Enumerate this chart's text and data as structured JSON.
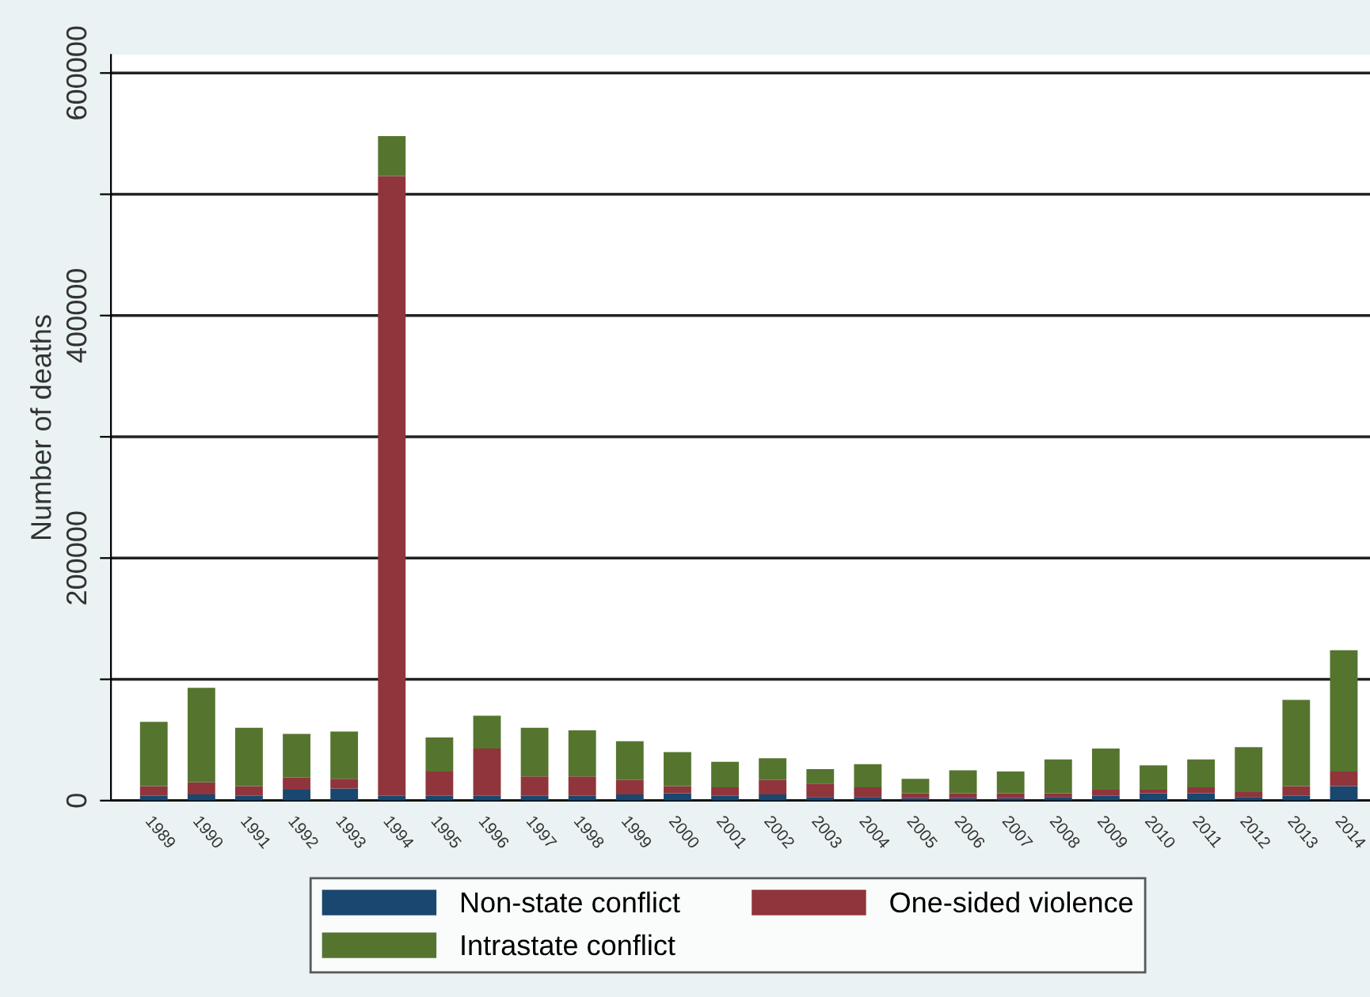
{
  "chart_data": {
    "type": "bar",
    "stacked": true,
    "ylabel": "Number of deaths",
    "categories": [
      "1989",
      "1990",
      "1991",
      "1992",
      "1993",
      "1994",
      "1995",
      "1996",
      "1997",
      "1998",
      "1999",
      "2000",
      "2001",
      "2002",
      "2003",
      "2004",
      "2005",
      "2006",
      "2007",
      "2008",
      "2009",
      "2010",
      "2011",
      "2012",
      "2013",
      "2014"
    ],
    "series": [
      {
        "name": "Non-state conflict",
        "color": "#1a476f",
        "values": [
          4000,
          5000,
          4000,
          9000,
          10000,
          4000,
          4000,
          4000,
          4000,
          4000,
          5000,
          6000,
          4000,
          5000,
          3000,
          3000,
          2000,
          2000,
          2000,
          3000,
          4000,
          6000,
          6000,
          3000,
          4000,
          12000
        ]
      },
      {
        "name": "One-sided violence",
        "color": "#90353b",
        "values": [
          8000,
          10000,
          8000,
          10000,
          8000,
          511000,
          20000,
          39000,
          16000,
          16000,
          12000,
          6000,
          7000,
          12000,
          11000,
          8000,
          4000,
          4000,
          4000,
          3000,
          5000,
          3000,
          5000,
          4000,
          8000,
          12000
        ]
      },
      {
        "name": "Intrastate conflict",
        "color": "#55752f",
        "values": [
          53000,
          78000,
          48000,
          36000,
          39000,
          33000,
          28000,
          27000,
          40000,
          38000,
          32000,
          28000,
          21000,
          18000,
          12000,
          19000,
          12000,
          19000,
          18000,
          28000,
          34000,
          20000,
          23000,
          37000,
          71000,
          100000
        ]
      }
    ],
    "ylim": [
      0,
      615000
    ],
    "yticks": [
      0,
      {
        "value": 100000,
        "label": null
      },
      200000,
      {
        "value": 300000,
        "label": null
      },
      400000,
      {
        "value": 500000,
        "label": null
      },
      600000
    ],
    "grid": "y",
    "legend": "bottom"
  }
}
